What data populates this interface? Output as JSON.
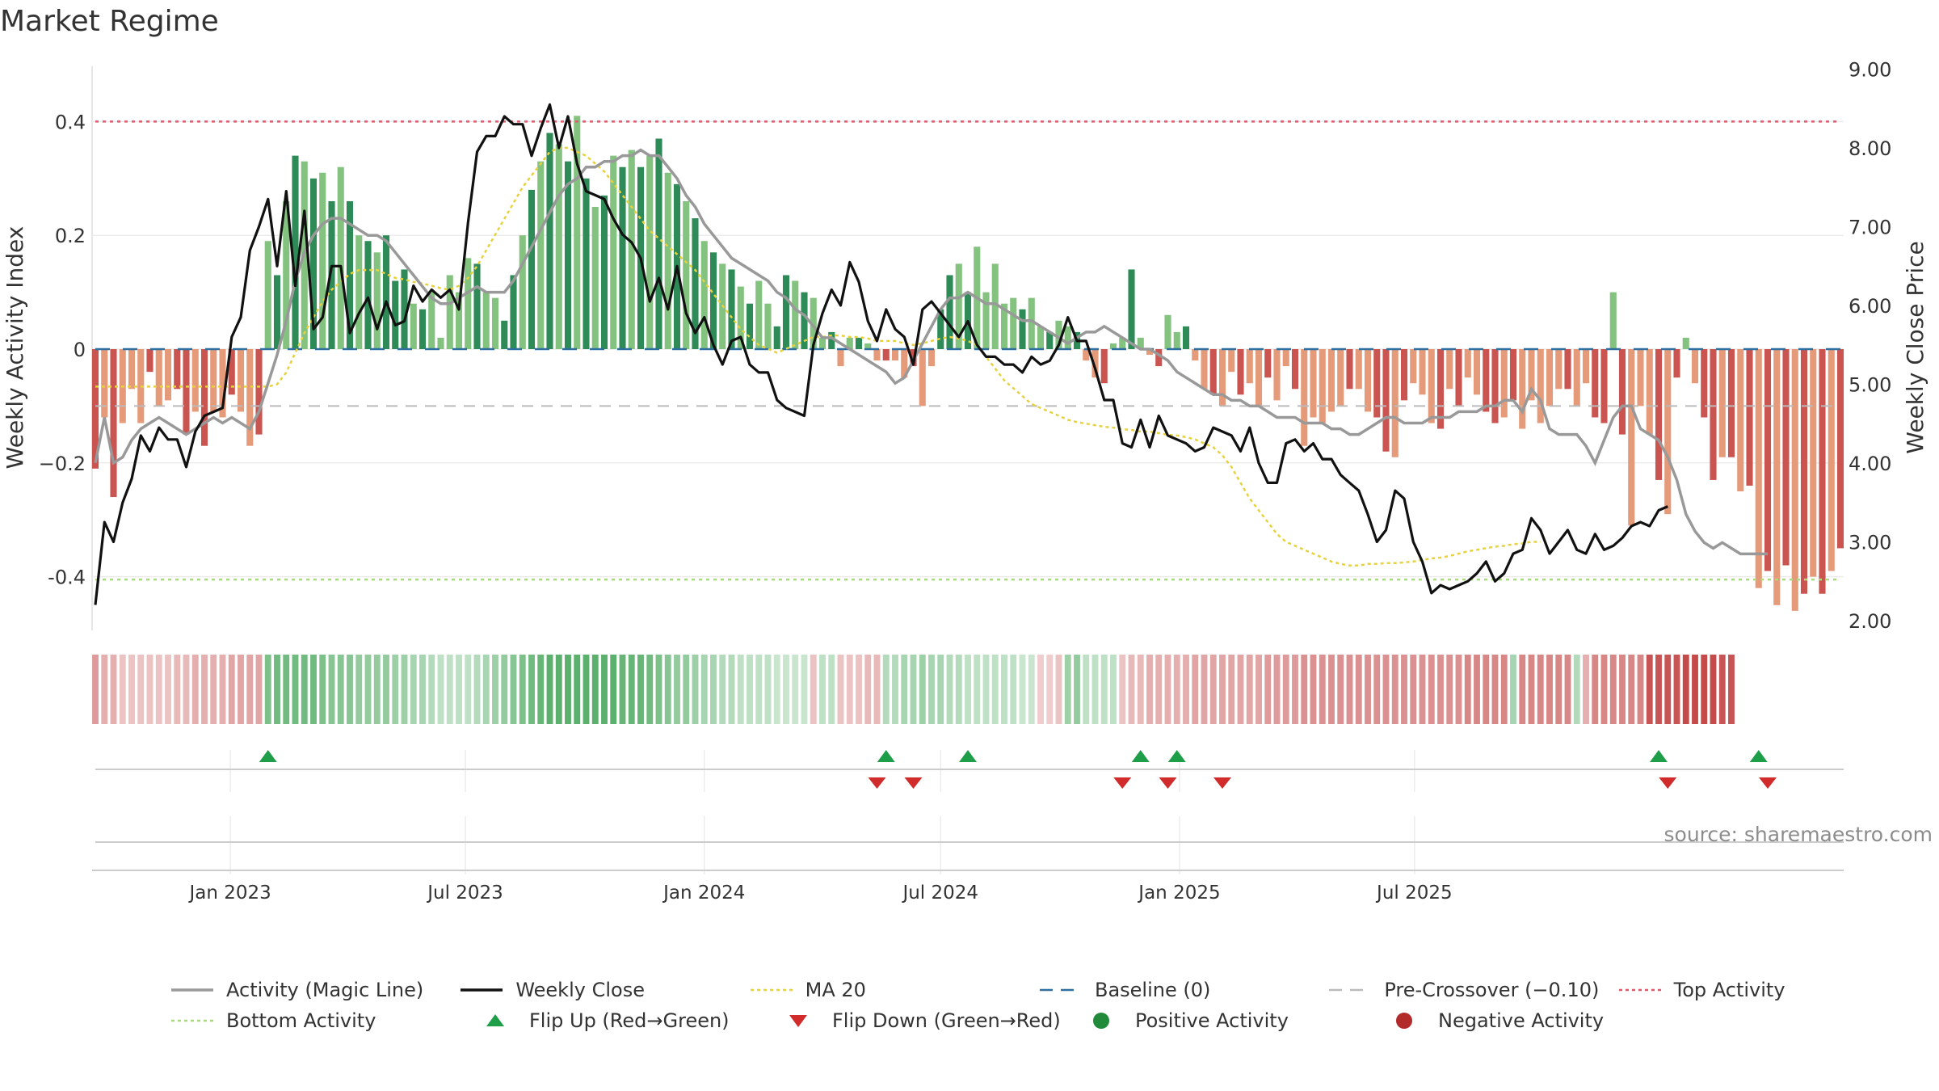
{
  "title": "Market Regime",
  "source": "source: sharemaestro.com",
  "colors": {
    "activity": "#999999",
    "close": "#111111",
    "ma20": "#e6d23c",
    "baseline": "#2f6f9f",
    "pre": "#bbbbbb",
    "top": "#e05a6e",
    "bottom": "#a8dc7a",
    "flip_up": "#1f9e4a",
    "flip_down": "#d22b2b",
    "pos_strong": "#2e8b57",
    "pos_light": "#84c27f",
    "neg_strong": "#c95450",
    "neg_light": "#e59a7a"
  },
  "legend": [
    {
      "key": "activity",
      "label": "Activity (Magic Line)",
      "style": "line"
    },
    {
      "key": "close",
      "label": "Weekly Close",
      "style": "line"
    },
    {
      "key": "ma20",
      "label": "MA 20",
      "style": "dotted"
    },
    {
      "key": "baseline",
      "label": "Baseline (0)",
      "style": "dashed"
    },
    {
      "key": "pre",
      "label": "Pre-Crossover (−0.10)",
      "style": "dashed"
    },
    {
      "key": "top",
      "label": "Top Activity",
      "style": "dotted"
    },
    {
      "key": "bottom",
      "label": "Bottom Activity",
      "style": "dotted"
    },
    {
      "key": "flip_up",
      "label": "Flip Up (Red→Green)",
      "style": "tri-up"
    },
    {
      "key": "flip_down",
      "label": "Flip Down (Green→Red)",
      "style": "tri-down"
    },
    {
      "key": "pos_dot",
      "label": "Positive Activity",
      "style": "dot",
      "color": "#1f8a3a"
    },
    {
      "key": "neg_dot",
      "label": "Negative Activity",
      "style": "dot",
      "color": "#b22a2a"
    }
  ],
  "chart_data": {
    "type": "bar",
    "x_start": "2022-09-19",
    "frequency": "weekly",
    "ylabel": "Weekly Activity Index",
    "y2label": "Weekly Close Price",
    "ylim": [
      -0.5,
      0.5
    ],
    "y2lim": [
      1.75,
      9.0
    ],
    "yticks": [
      0.4,
      0.2,
      0,
      -0.2,
      -0.4
    ],
    "ytick_labels": [
      "0.4",
      "0.2",
      "0",
      "−0.2",
      "-0.4"
    ],
    "y2ticks": [
      "9.00",
      "8.00",
      "7.00",
      "6.00",
      "5.00",
      "4.00",
      "3.00",
      "2.00"
    ],
    "xticks": [
      "Jan 2023",
      "Jul 2023",
      "Jan 2024",
      "Jul 2024",
      "Jan 2025",
      "Jul 2025"
    ],
    "reference_lines": {
      "top": 0.4,
      "bottom": -0.405,
      "pre_crossover": -0.1,
      "baseline": 0
    },
    "activity": [
      -0.21,
      -0.12,
      -0.26,
      -0.13,
      -0.07,
      -0.13,
      -0.04,
      -0.1,
      -0.09,
      -0.07,
      -0.15,
      -0.11,
      -0.17,
      -0.11,
      -0.12,
      -0.08,
      -0.11,
      -0.17,
      -0.15,
      0.19,
      0.13,
      0.26,
      0.34,
      0.33,
      0.3,
      0.31,
      0.26,
      0.32,
      0.26,
      0.2,
      0.19,
      0.17,
      0.2,
      0.12,
      0.14,
      0.08,
      0.07,
      0.1,
      0.02,
      0.13,
      0.1,
      0.16,
      0.15,
      0.1,
      0.09,
      0.05,
      0.13,
      0.2,
      0.28,
      0.33,
      0.38,
      0.36,
      0.33,
      0.41,
      0.3,
      0.25,
      0.27,
      0.34,
      0.32,
      0.35,
      0.32,
      0.34,
      0.37,
      0.31,
      0.29,
      0.26,
      0.23,
      0.19,
      0.17,
      0.15,
      0.14,
      0.11,
      0.08,
      0.12,
      0.08,
      0.04,
      0.13,
      0.12,
      0.1,
      0.09,
      0.02,
      0.03,
      -0.03,
      0.02,
      0.02,
      0.01,
      -0.02,
      -0.02,
      -0.02,
      -0.05,
      -0.03,
      -0.1,
      -0.03,
      0.07,
      0.13,
      0.15,
      0.1,
      0.18,
      0.1,
      0.15,
      0.08,
      0.09,
      0.07,
      0.09,
      0.04,
      0.03,
      0.05,
      0.04,
      0.03,
      -0.02,
      -0.05,
      -0.06,
      0.01,
      0.02,
      0.14,
      0.02,
      -0.01,
      -0.03,
      0.06,
      0.03,
      0.04,
      -0.02,
      -0.07,
      -0.08,
      -0.1,
      -0.04,
      -0.08,
      -0.06,
      -0.1,
      -0.05,
      -0.09,
      -0.03,
      -0.07,
      -0.17,
      -0.12,
      -0.13,
      -0.11,
      -0.1,
      -0.07,
      -0.07,
      -0.11,
      -0.12,
      -0.18,
      -0.19,
      -0.09,
      -0.06,
      -0.08,
      -0.13,
      -0.14,
      -0.07,
      -0.1,
      -0.05,
      -0.08,
      -0.11,
      -0.13,
      -0.12,
      -0.09,
      -0.14,
      -0.09,
      -0.13,
      -0.1,
      -0.07,
      -0.07,
      -0.1,
      -0.06,
      -0.12,
      -0.13,
      0.1,
      -0.15,
      -0.31,
      -0.1,
      -0.15,
      -0.23,
      -0.29,
      -0.05,
      0.02,
      -0.06,
      -0.12,
      -0.23,
      -0.19,
      -0.19,
      -0.25,
      -0.24,
      -0.42,
      -0.39,
      -0.45,
      -0.38,
      -0.46,
      -0.43,
      -0.4,
      -0.43,
      -0.39,
      -0.35
    ],
    "activity_line": [
      -0.2,
      -0.12,
      -0.2,
      -0.19,
      -0.16,
      -0.14,
      -0.13,
      -0.12,
      -0.13,
      -0.14,
      -0.15,
      -0.14,
      -0.13,
      -0.12,
      -0.13,
      -0.12,
      -0.13,
      -0.14,
      -0.11,
      -0.06,
      -0.01,
      0.05,
      0.12,
      0.17,
      0.2,
      0.22,
      0.23,
      0.23,
      0.22,
      0.21,
      0.2,
      0.2,
      0.19,
      0.17,
      0.15,
      0.13,
      0.11,
      0.09,
      0.08,
      0.08,
      0.09,
      0.1,
      0.11,
      0.1,
      0.1,
      0.1,
      0.12,
      0.15,
      0.18,
      0.21,
      0.24,
      0.27,
      0.29,
      0.3,
      0.32,
      0.32,
      0.33,
      0.33,
      0.34,
      0.34,
      0.35,
      0.34,
      0.34,
      0.32,
      0.3,
      0.27,
      0.25,
      0.22,
      0.2,
      0.18,
      0.16,
      0.15,
      0.14,
      0.13,
      0.12,
      0.1,
      0.09,
      0.07,
      0.06,
      0.04,
      0.02,
      0.02,
      0.01,
      0.0,
      -0.01,
      -0.02,
      -0.03,
      -0.04,
      -0.06,
      -0.05,
      -0.02,
      0.01,
      0.04,
      0.07,
      0.09,
      0.09,
      0.1,
      0.09,
      0.08,
      0.08,
      0.07,
      0.06,
      0.05,
      0.05,
      0.04,
      0.03,
      0.02,
      0.01,
      0.02,
      0.03,
      0.03,
      0.04,
      0.03,
      0.02,
      0.01,
      0.0,
      0.0,
      -0.01,
      -0.02,
      -0.04,
      -0.05,
      -0.06,
      -0.07,
      -0.08,
      -0.08,
      -0.09,
      -0.09,
      -0.1,
      -0.1,
      -0.11,
      -0.12,
      -0.12,
      -0.12,
      -0.13,
      -0.13,
      -0.13,
      -0.14,
      -0.14,
      -0.15,
      -0.15,
      -0.14,
      -0.13,
      -0.12,
      -0.12,
      -0.13,
      -0.13,
      -0.13,
      -0.12,
      -0.12,
      -0.12,
      -0.11,
      -0.11,
      -0.11,
      -0.1,
      -0.1,
      -0.09,
      -0.09,
      -0.11,
      -0.07,
      -0.09,
      -0.14,
      -0.15,
      -0.15,
      -0.15,
      -0.17,
      -0.2,
      -0.16,
      -0.12,
      -0.1,
      -0.1,
      -0.14,
      -0.15,
      -0.16,
      -0.19,
      -0.23,
      -0.29,
      -0.32,
      -0.34,
      -0.35,
      -0.34,
      -0.35,
      -0.36,
      -0.36,
      -0.36,
      -0.36
    ],
    "weekly_close": [
      2.2,
      3.25,
      3.0,
      3.5,
      3.8,
      4.35,
      4.15,
      4.45,
      4.3,
      4.3,
      3.95,
      4.4,
      4.6,
      4.65,
      4.7,
      5.6,
      5.85,
      6.7,
      7.0,
      7.35,
      6.5,
      7.45,
      6.25,
      7.2,
      5.7,
      5.85,
      6.5,
      6.5,
      5.65,
      5.9,
      6.1,
      5.7,
      6.05,
      5.75,
      5.8,
      6.25,
      6.05,
      6.2,
      6.1,
      6.2,
      5.95,
      7.05,
      7.95,
      8.15,
      8.15,
      8.4,
      8.3,
      8.3,
      7.9,
      8.25,
      8.55,
      8.0,
      8.4,
      7.8,
      7.45,
      7.4,
      7.35,
      7.1,
      6.9,
      6.8,
      6.6,
      6.05,
      6.35,
      5.95,
      6.5,
      5.9,
      5.65,
      5.85,
      5.5,
      5.25,
      5.55,
      5.6,
      5.25,
      5.15,
      5.15,
      4.8,
      4.7,
      4.65,
      4.6,
      5.5,
      5.9,
      6.2,
      6.0,
      6.55,
      6.3,
      5.8,
      5.55,
      5.95,
      5.7,
      5.6,
      5.25,
      5.95,
      6.05,
      5.9,
      5.75,
      5.6,
      5.8,
      5.5,
      5.35,
      5.35,
      5.25,
      5.25,
      5.15,
      5.35,
      5.25,
      5.3,
      5.5,
      5.85,
      5.55,
      5.55,
      5.2,
      4.8,
      4.8,
      4.25,
      4.2,
      4.55,
      4.2,
      4.6,
      4.35,
      4.3,
      4.25,
      4.15,
      4.2,
      4.45,
      4.4,
      4.35,
      4.15,
      4.45,
      4.0,
      3.75,
      3.75,
      4.25,
      4.3,
      4.15,
      4.25,
      4.05,
      4.05,
      3.85,
      3.75,
      3.65,
      3.35,
      3.0,
      3.15,
      3.65,
      3.55,
      3.0,
      2.75,
      2.35,
      2.45,
      2.4,
      2.45,
      2.5,
      2.6,
      2.75,
      2.5,
      2.6,
      2.85,
      2.9,
      3.3,
      3.15,
      2.85,
      3.0,
      3.15,
      2.9,
      2.85,
      3.1,
      2.9,
      2.95,
      3.05,
      3.2,
      3.25,
      3.2,
      3.4,
      3.45
    ],
    "ma20": [
      4.97,
      4.97,
      4.97,
      4.97,
      4.97,
      4.97,
      4.97,
      4.97,
      4.97,
      4.97,
      4.97,
      4.97,
      4.97,
      4.97,
      4.97,
      4.97,
      4.97,
      4.97,
      4.97,
      4.97,
      5.0,
      5.15,
      5.4,
      5.65,
      5.85,
      6.05,
      6.2,
      6.3,
      6.4,
      6.45,
      6.45,
      6.45,
      6.4,
      6.35,
      6.33,
      6.3,
      6.28,
      6.25,
      6.22,
      6.2,
      6.25,
      6.35,
      6.5,
      6.7,
      6.9,
      7.1,
      7.3,
      7.5,
      7.65,
      7.8,
      7.95,
      8.0,
      8.0,
      7.95,
      7.9,
      7.8,
      7.7,
      7.55,
      7.4,
      7.25,
      7.1,
      6.95,
      6.85,
      6.75,
      6.65,
      6.55,
      6.45,
      6.3,
      6.15,
      6.0,
      5.85,
      5.7,
      5.6,
      5.5,
      5.45,
      5.4,
      5.45,
      5.5,
      5.55,
      5.6,
      5.6,
      5.62,
      5.62,
      5.6,
      5.6,
      5.58,
      5.55,
      5.55,
      5.55,
      5.52,
      5.5,
      5.52,
      5.55,
      5.58,
      5.6,
      5.58,
      5.55,
      5.5,
      5.35,
      5.2,
      5.05,
      4.95,
      4.85,
      4.75,
      4.7,
      4.65,
      4.6,
      4.55,
      4.52,
      4.5,
      4.48,
      4.46,
      4.45,
      4.43,
      4.42,
      4.4,
      4.4,
      4.38,
      4.36,
      4.35,
      4.33,
      4.3,
      4.25,
      4.2,
      4.1,
      3.95,
      3.75,
      3.55,
      3.4,
      3.25,
      3.1,
      3.0,
      2.95,
      2.9,
      2.85,
      2.8,
      2.75,
      2.72,
      2.7,
      2.7,
      2.72,
      2.72,
      2.73,
      2.73,
      2.74,
      2.75,
      2.77,
      2.79,
      2.8,
      2.82,
      2.85,
      2.88,
      2.9,
      2.92,
      2.94,
      2.95,
      2.97,
      2.98,
      3.0,
      3.0
    ],
    "regime_strip": [
      -0.5,
      -0.4,
      -0.4,
      -0.3,
      -0.3,
      -0.3,
      -0.3,
      -0.3,
      -0.3,
      -0.35,
      -0.35,
      -0.4,
      -0.4,
      -0.4,
      -0.4,
      -0.45,
      -0.45,
      -0.45,
      -0.45,
      0.6,
      0.65,
      0.65,
      0.65,
      0.65,
      0.65,
      0.6,
      0.55,
      0.55,
      0.55,
      0.5,
      0.5,
      0.5,
      0.5,
      0.45,
      0.45,
      0.4,
      0.4,
      0.35,
      0.3,
      0.3,
      0.3,
      0.3,
      0.35,
      0.4,
      0.45,
      0.5,
      0.55,
      0.6,
      0.65,
      0.7,
      0.75,
      0.75,
      0.75,
      0.75,
      0.75,
      0.75,
      0.75,
      0.75,
      0.7,
      0.7,
      0.7,
      0.65,
      0.6,
      0.55,
      0.5,
      0.5,
      0.45,
      0.4,
      0.4,
      0.35,
      0.35,
      0.3,
      0.3,
      0.3,
      0.3,
      0.25,
      0.25,
      0.25,
      0.25,
      -0.3,
      0.3,
      0.3,
      -0.3,
      -0.3,
      -0.3,
      -0.35,
      -0.35,
      0.35,
      0.35,
      0.4,
      0.4,
      0.45,
      0.4,
      0.4,
      0.35,
      0.35,
      0.3,
      0.3,
      0.3,
      0.3,
      0.3,
      0.3,
      0.25,
      0.25,
      -0.25,
      -0.25,
      -0.3,
      0.45,
      0.5,
      0.3,
      0.3,
      0.3,
      0.3,
      -0.3,
      -0.35,
      -0.35,
      -0.4,
      -0.4,
      -0.4,
      -0.4,
      -0.4,
      -0.45,
      -0.45,
      -0.45,
      -0.45,
      -0.45,
      -0.45,
      -0.45,
      -0.45,
      -0.5,
      -0.5,
      -0.5,
      -0.5,
      -0.55,
      -0.55,
      -0.55,
      -0.55,
      -0.55,
      -0.55,
      -0.55,
      -0.55,
      -0.55,
      -0.55,
      -0.55,
      -0.55,
      -0.55,
      -0.55,
      -0.55,
      -0.55,
      -0.55,
      -0.55,
      -0.6,
      -0.6,
      -0.6,
      -0.6,
      -0.6,
      0.4,
      -0.6,
      -0.6,
      -0.6,
      -0.6,
      -0.6,
      -0.6,
      0.35,
      -0.4,
      -0.6,
      -0.6,
      -0.6,
      -0.6,
      -0.6,
      -0.6,
      -0.85,
      -0.85,
      -0.85,
      -0.85,
      -0.9,
      -0.9,
      -0.9,
      -0.9,
      -0.85,
      -0.85
    ],
    "flip_up_weeks": [
      19,
      87,
      96,
      115,
      119,
      172,
      183
    ],
    "flip_down_weeks": [
      86,
      90,
      113,
      118,
      124,
      173,
      184
    ]
  }
}
